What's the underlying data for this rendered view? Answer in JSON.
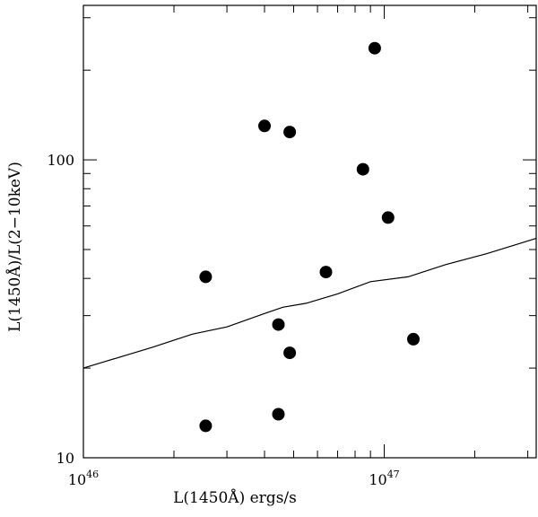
{
  "chart_data": {
    "type": "scatter",
    "title": "",
    "xlabel": "L(1450Å) ergs/s",
    "ylabel": "L(1450Å)/L(2−10keV)",
    "xscale": "log",
    "yscale": "log",
    "xlim": [
      1e+46,
      3.2e+47
    ],
    "ylim": [
      10,
      330
    ],
    "x_tick_labels": [
      {
        "value": 1e+46,
        "base": "10",
        "exp": "46"
      },
      {
        "value": 1e+47,
        "base": "10",
        "exp": "47"
      }
    ],
    "y_tick_labels": [
      {
        "value": 10,
        "label": "10"
      },
      {
        "value": 100,
        "label": "100"
      }
    ],
    "series": [
      {
        "name": "points",
        "kind": "scatter",
        "x": [
          2.55e+46,
          2.55e+46,
          4e+46,
          4.45e+46,
          4.45e+46,
          4.85e+46,
          4.85e+46,
          6.4e+46,
          8.5e+46,
          9.3e+46,
          1.03e+47,
          1.25e+47
        ],
        "y": [
          12.8,
          40.5,
          130,
          28.0,
          14.0,
          22.5,
          124,
          42.0,
          93,
          237,
          64,
          25.0
        ]
      },
      {
        "name": "relation",
        "kind": "line",
        "x": [
          1e+46,
          1.7e+46,
          2.3e+46,
          3e+46,
          4e+46,
          4.6e+46,
          5.5e+46,
          7e+46,
          9e+46,
          1.2e+47,
          1.6e+47,
          2.2e+47,
          3.2e+47
        ],
        "y": [
          20.0,
          23.5,
          26.0,
          27.5,
          30.5,
          32.0,
          33.0,
          35.5,
          39.0,
          40.5,
          44.5,
          48.5,
          54.5
        ]
      }
    ]
  }
}
